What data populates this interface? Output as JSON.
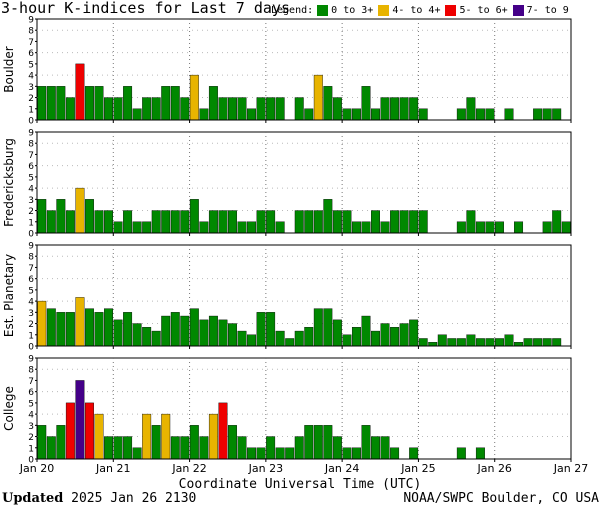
{
  "header": {
    "title": "3-hour K-indices for Last 7 days",
    "legend_label": "Legend:",
    "legend": [
      {
        "label": "0 to 3+",
        "color": "#008800"
      },
      {
        "label": "4- to 4+",
        "color": "#e8b400"
      },
      {
        "label": "5- to 6+",
        "color": "#ee0000"
      },
      {
        "label": "7- to 9",
        "color": "#440088"
      }
    ]
  },
  "footer": {
    "updated_label": "Updated",
    "updated_value": "2025 Jan 26 2130",
    "source": "NOAA/SWPC Boulder, CO USA"
  },
  "chart_data": {
    "type": "bar",
    "xlabel": "Coordinate Universal Time (UTC)",
    "x_ticks": [
      "Jan 20",
      "Jan 21",
      "Jan 22",
      "Jan 23",
      "Jan 24",
      "Jan 25",
      "Jan 26",
      "Jan 27"
    ],
    "y_ticks": [
      "0",
      "1",
      "2",
      "3",
      "4",
      "5",
      "6",
      "7",
      "8",
      "9"
    ],
    "ylim": [
      0,
      9
    ],
    "grid": true,
    "panels": [
      {
        "name": "Boulder",
        "values": [
          3,
          3,
          3,
          2,
          5,
          3,
          3,
          2,
          2,
          3,
          1,
          2,
          2,
          3,
          3,
          2,
          4,
          1,
          3,
          2,
          2,
          2,
          1,
          2,
          2,
          2,
          0,
          2,
          1,
          4,
          3,
          2,
          1,
          1,
          3,
          1,
          2,
          2,
          2,
          2,
          1,
          0,
          0,
          0,
          1,
          2,
          1,
          1,
          0,
          1,
          0,
          0,
          1,
          1,
          1,
          0
        ]
      },
      {
        "name": "Fredericksburg",
        "values": [
          3,
          2,
          3,
          2,
          4,
          3,
          2,
          2,
          1,
          2,
          1,
          1,
          2,
          2,
          2,
          2,
          3,
          1,
          2,
          2,
          2,
          1,
          1,
          2,
          2,
          1,
          0,
          2,
          2,
          2,
          3,
          2,
          2,
          1,
          1,
          2,
          1,
          2,
          2,
          2,
          2,
          0,
          0,
          0,
          1,
          2,
          1,
          1,
          1,
          0,
          1,
          0,
          0,
          1,
          2,
          1,
          0
        ]
      },
      {
        "name": "Est. Planetary",
        "values": [
          4.0,
          3.33,
          3.0,
          3.0,
          4.33,
          3.33,
          3.0,
          3.33,
          2.33,
          3.0,
          2.0,
          1.67,
          1.33,
          2.67,
          3.0,
          2.67,
          3.33,
          2.33,
          2.67,
          2.33,
          2.0,
          1.33,
          1.0,
          3.0,
          3.0,
          1.33,
          0.67,
          1.33,
          1.67,
          3.33,
          3.33,
          2.33,
          1.0,
          1.67,
          2.67,
          1.33,
          2.0,
          1.67,
          2.0,
          2.33,
          0.67,
          0.33,
          1.0,
          0.67,
          0.67,
          1.0,
          0.67,
          0.67,
          0.67,
          1.0,
          0.33,
          0.67,
          0.67,
          0.67,
          0.67
        ]
      },
      {
        "name": "College",
        "values": [
          3,
          2,
          3,
          5,
          7,
          5,
          4,
          2,
          2,
          2,
          1,
          4,
          3,
          4,
          2,
          2,
          3,
          2,
          4,
          5,
          3,
          2,
          1,
          1,
          2,
          1,
          1,
          2,
          3,
          3,
          3,
          2,
          1,
          1,
          3,
          2,
          2,
          1,
          0,
          1,
          0,
          0,
          0,
          0,
          1,
          0,
          1,
          0,
          0,
          0,
          0,
          0,
          0,
          0,
          0,
          0
        ]
      }
    ]
  }
}
